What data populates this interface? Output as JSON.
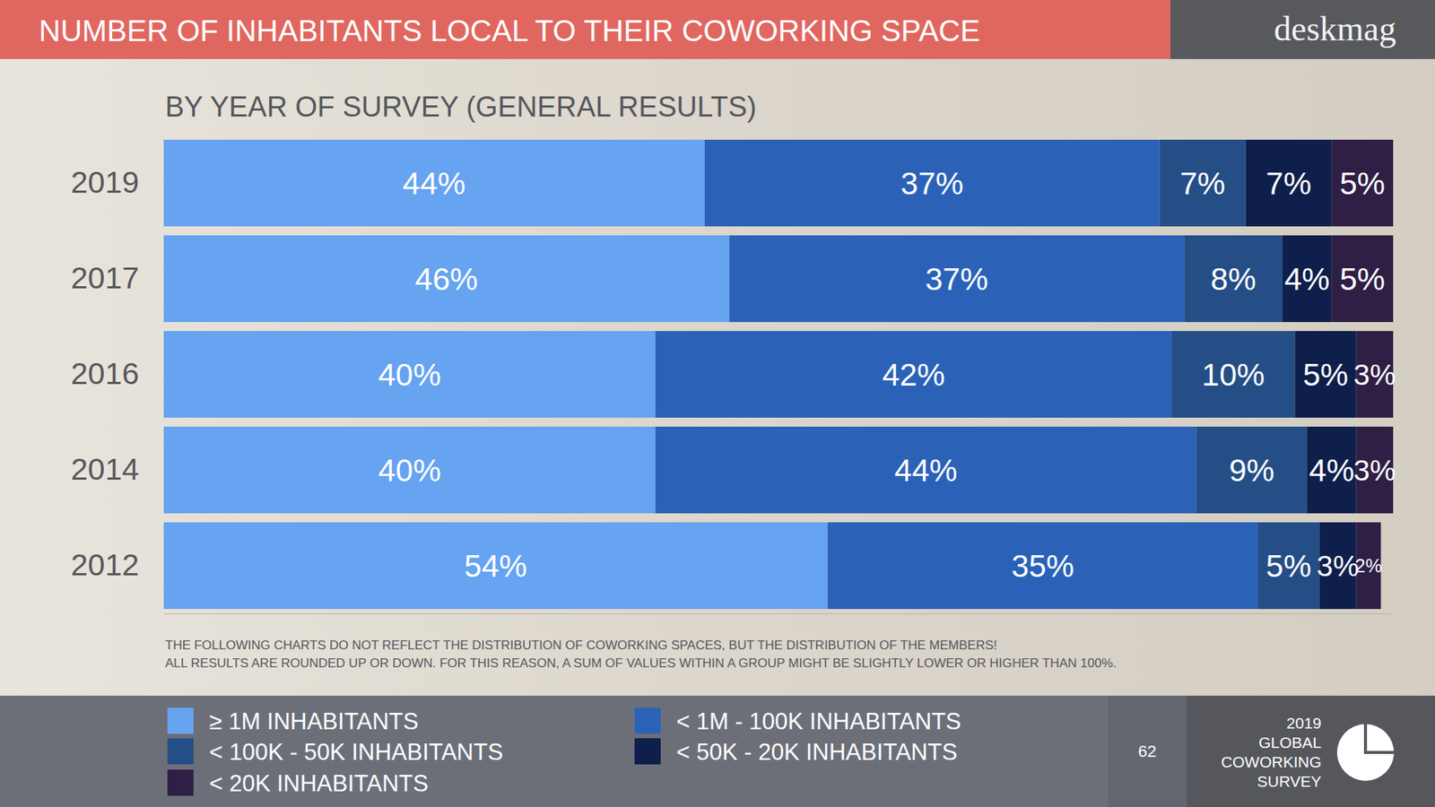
{
  "chart_data": {
    "type": "bar",
    "title": "NUMBER OF INHABITANTS LOCAL TO THEIR COWORKING SPACE",
    "subtitle": "BY YEAR OF SURVEY (GENERAL RESULTS)",
    "brand": "deskmag",
    "notes": [
      "THE FOLLOWING CHARTS DO NOT REFLECT THE DISTRIBUTION OF COWORKING SPACES, BUT THE DISTRIBUTION OF THE MEMBERS!",
      "ALL RESULTS ARE ROUNDED UP OR DOWN. FOR THIS REASON, A SUM OF VALUES WITHIN A GROUP  MIGHT BE SLIGHTLY LOWER OR HIGHER THAN 100%."
    ],
    "page_number": "62",
    "footer_lines": [
      "2019",
      "GLOBAL",
      "COWORKING",
      "SURVEY"
    ],
    "orientation": "horizontal",
    "stacked": true,
    "data_labels": true,
    "tick_labels": "y",
    "xlim": [
      0,
      100
    ],
    "categories": [
      "2019",
      "2017",
      "2016",
      "2014",
      "2012"
    ],
    "series": [
      {
        "name": "≥ 1M INHABITANTS",
        "color": "#66a3f0",
        "values": [
          44,
          46,
          40,
          40,
          54
        ],
        "value_labels": [
          "44%",
          "46%",
          "40%",
          "40%",
          "54%"
        ]
      },
      {
        "name": "< 1M - 100K INHABITANTS",
        "color": "#2b62b8",
        "values": [
          37,
          37,
          42,
          44,
          35
        ],
        "value_labels": [
          "37%",
          "37%",
          "42%",
          "44%",
          "35%"
        ]
      },
      {
        "name": "< 100K - 50K INHABITANTS",
        "color": "#254e86",
        "values": [
          7,
          8,
          10,
          9,
          5
        ],
        "value_labels": [
          "7%",
          "8%",
          "10%",
          "9%",
          "5%"
        ]
      },
      {
        "name": "< 50K - 20K INHABITANTS",
        "color": "#0e1f4b",
        "values": [
          7,
          4,
          5,
          4,
          3
        ],
        "value_labels": [
          "7%",
          "4%",
          "5%",
          "4%",
          "3%"
        ]
      },
      {
        "name": "< 20K INHABITANTS",
        "color": "#2f1f45",
        "values": [
          5,
          5,
          3,
          3,
          2
        ],
        "value_labels": [
          "5%",
          "5%",
          "3%",
          "3%",
          "2%"
        ]
      }
    ]
  }
}
